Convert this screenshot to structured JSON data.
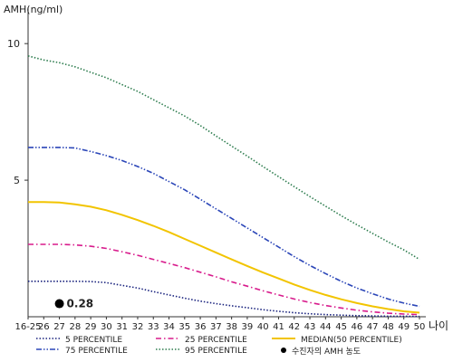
{
  "chart_data": {
    "type": "line",
    "title": "",
    "ylabel": "AMH(ng/ml)",
    "xlabel": "나이",
    "ylim": [
      0,
      11
    ],
    "y_ticks": [
      5,
      10
    ],
    "categories": [
      "16-25",
      "26",
      "27",
      "28",
      "29",
      "30",
      "31",
      "32",
      "33",
      "34",
      "35",
      "36",
      "37",
      "38",
      "39",
      "40",
      "41",
      "42",
      "43",
      "44",
      "45",
      "46",
      "47",
      "48",
      "49",
      "50"
    ],
    "series": [
      {
        "name": "5 PERCENTILE",
        "color": "#1a237e",
        "dash": "dot",
        "values": [
          1.3,
          1.3,
          1.3,
          1.3,
          1.29,
          1.25,
          1.15,
          1.05,
          0.92,
          0.8,
          0.68,
          0.57,
          0.48,
          0.4,
          0.33,
          0.26,
          0.2,
          0.15,
          0.11,
          0.08,
          0.06,
          0.04,
          0.03,
          0.02,
          0.02,
          0.01
        ]
      },
      {
        "name": "25 PERCENTILE",
        "color": "#d81b8c",
        "dash": "dashdot",
        "values": [
          2.65,
          2.65,
          2.65,
          2.63,
          2.58,
          2.5,
          2.38,
          2.25,
          2.1,
          1.95,
          1.8,
          1.63,
          1.46,
          1.28,
          1.12,
          0.95,
          0.8,
          0.65,
          0.52,
          0.41,
          0.32,
          0.24,
          0.18,
          0.13,
          0.1,
          0.08
        ]
      },
      {
        "name": "MEDIAN(50 PERCENTILE)",
        "color": "#f2c400",
        "dash": "solid",
        "values": [
          4.2,
          4.2,
          4.18,
          4.12,
          4.03,
          3.9,
          3.73,
          3.54,
          3.33,
          3.1,
          2.85,
          2.6,
          2.35,
          2.1,
          1.86,
          1.62,
          1.4,
          1.18,
          0.98,
          0.8,
          0.64,
          0.5,
          0.38,
          0.28,
          0.2,
          0.15
        ]
      },
      {
        "name": "75 PERCENTILE",
        "color": "#2b46b8",
        "dash": "dashdotdot",
        "values": [
          6.2,
          6.2,
          6.2,
          6.18,
          6.05,
          5.9,
          5.72,
          5.5,
          5.25,
          4.95,
          4.65,
          4.3,
          3.95,
          3.6,
          3.25,
          2.9,
          2.55,
          2.2,
          1.88,
          1.58,
          1.3,
          1.05,
          0.84,
          0.65,
          0.5,
          0.38
        ]
      },
      {
        "name": "95 PERCENTILE",
        "color": "#2e7d4f",
        "dash": "dot",
        "values": [
          9.55,
          9.4,
          9.3,
          9.15,
          8.95,
          8.75,
          8.5,
          8.25,
          7.95,
          7.65,
          7.35,
          7.0,
          6.62,
          6.25,
          5.88,
          5.5,
          5.13,
          4.76,
          4.4,
          4.05,
          3.7,
          3.37,
          3.05,
          2.74,
          2.45,
          2.1
        ]
      }
    ],
    "marker": {
      "name": "수진자의 AMH 농도",
      "x": "27",
      "y": 0.28,
      "label": "0.28",
      "color": "#000000"
    },
    "grid": false,
    "legend_position": "bottom"
  }
}
